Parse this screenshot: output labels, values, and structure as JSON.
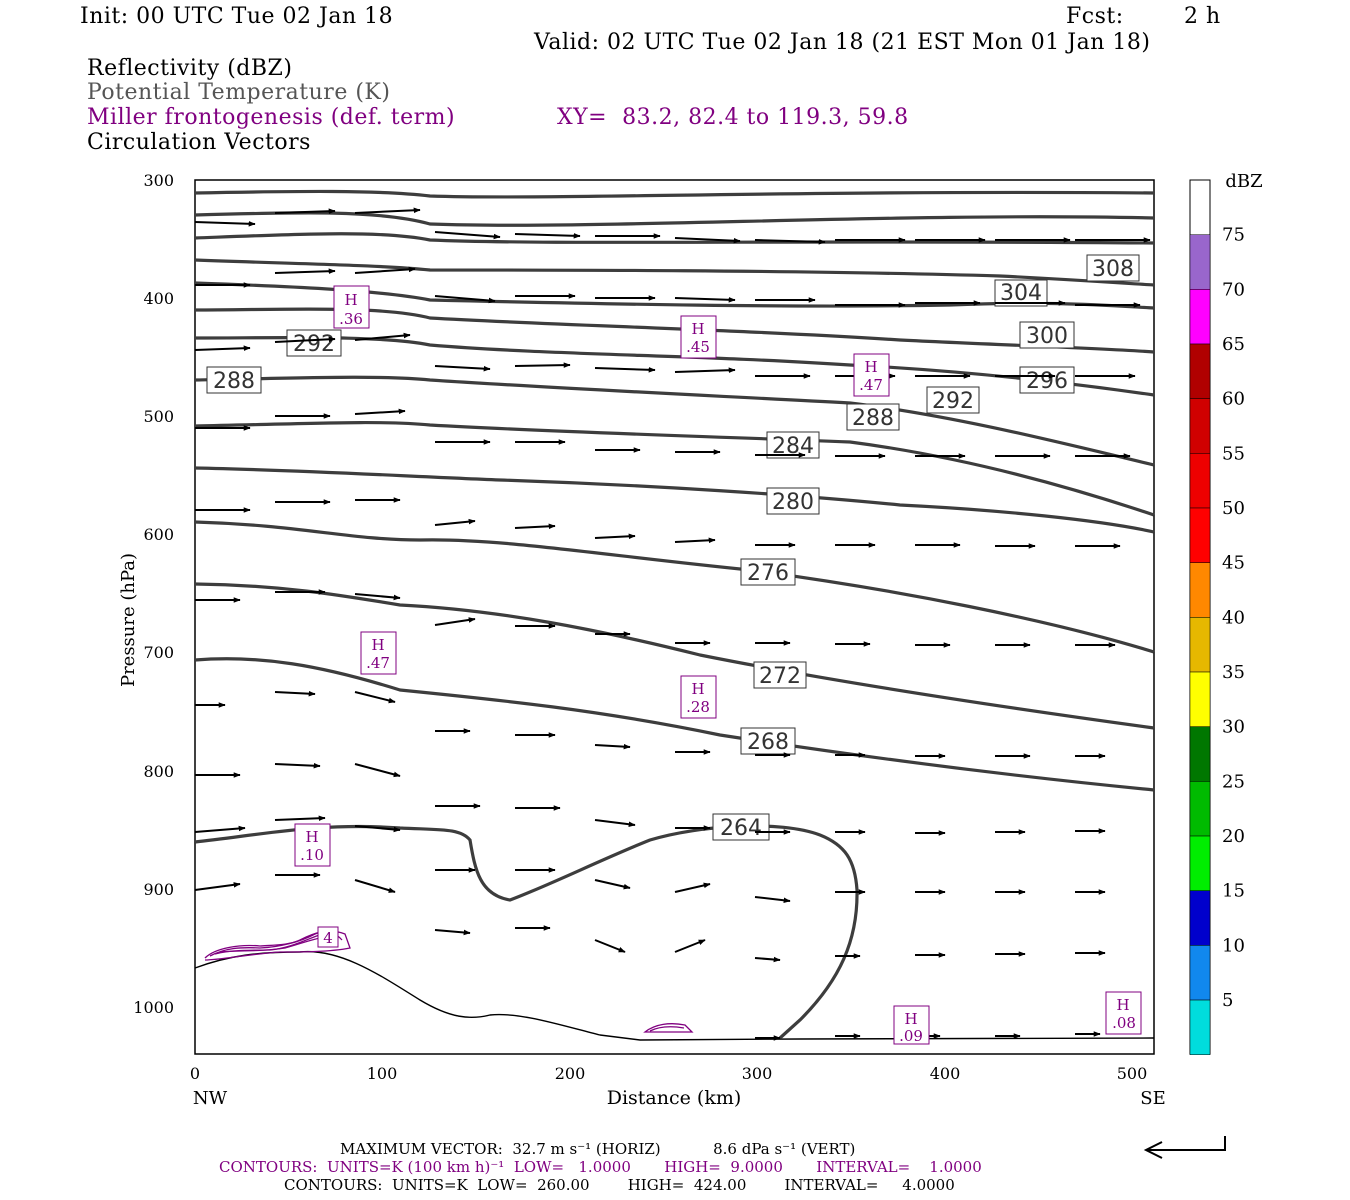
{
  "header": {
    "init": "Init: 00 UTC Tue 02 Jan 18",
    "fcst_label": "Fcst:",
    "fcst_value": "2 h",
    "valid": "Valid: 02 UTC Tue 02 Jan 18 (21 EST Mon 01 Jan 18)"
  },
  "legend": {
    "field1": "Reflectivity (dBZ)",
    "field2": "Potential Temperature (K)",
    "field3": "Miller frontogenesis (def. term)",
    "xy": "XY=  83.2, 82.4 to 119.3, 59.8",
    "field4": "Circulation Vectors"
  },
  "chart_data": {
    "type": "cross-section",
    "xlabel": "Distance (km)",
    "ylabel": "Pressure (hPa)",
    "xlim": [
      0,
      512
    ],
    "ylim": [
      1040,
      300
    ],
    "x_ticks": [
      "0",
      "100",
      "200",
      "300",
      "400",
      "500"
    ],
    "y_ticks": [
      "300",
      "400",
      "500",
      "600",
      "700",
      "800",
      "900",
      "1000"
    ],
    "left_end": "NW",
    "right_end": "SE",
    "theta_contour_labels": [
      "308",
      "304",
      "300",
      "296",
      "292",
      "288",
      "284",
      "280",
      "276",
      "272",
      "268",
      "264",
      "292",
      "288"
    ],
    "frontogenesis_maxima": [
      {
        "label": "H",
        "value": ".36"
      },
      {
        "label": "H",
        "value": ".45"
      },
      {
        "label": "H",
        "value": ".47"
      },
      {
        "label": "H",
        "value": ".47"
      },
      {
        "label": "H",
        "value": ".28"
      },
      {
        "label": "H",
        "value": ".10"
      },
      {
        "label": "H",
        "value": ".09"
      },
      {
        "label": "H",
        "value": ".08"
      }
    ],
    "reflectivity_label": "4",
    "colorbar": {
      "unit": "dBZ",
      "levels": [
        "75",
        "70",
        "65",
        "60",
        "55",
        "50",
        "45",
        "40",
        "35",
        "30",
        "25",
        "20",
        "15",
        "10",
        "5"
      ],
      "colors": [
        "#9966cc",
        "#ff00ff",
        "#b00000",
        "#d00000",
        "#ee0000",
        "#ff0000",
        "#ff8800",
        "#e6b800",
        "#ffff00",
        "#007700",
        "#00bb00",
        "#00ee00",
        "#0000cc",
        "#1188ee",
        "#00dddd"
      ]
    }
  },
  "footer": {
    "max_vector": "MAXIMUM VECTOR:  32.7 m s⁻¹ (HORIZ)           8.6 dPa s⁻¹ (VERT)",
    "contours1": "CONTOURS:  UNITS=K (100 km h)⁻¹  LOW=   1.0000       HIGH=  9.0000       INTERVAL=    1.0000",
    "contours2": "CONTOURS:  UNITS=K  LOW=  260.00        HIGH=  424.00        INTERVAL=     4.0000"
  }
}
